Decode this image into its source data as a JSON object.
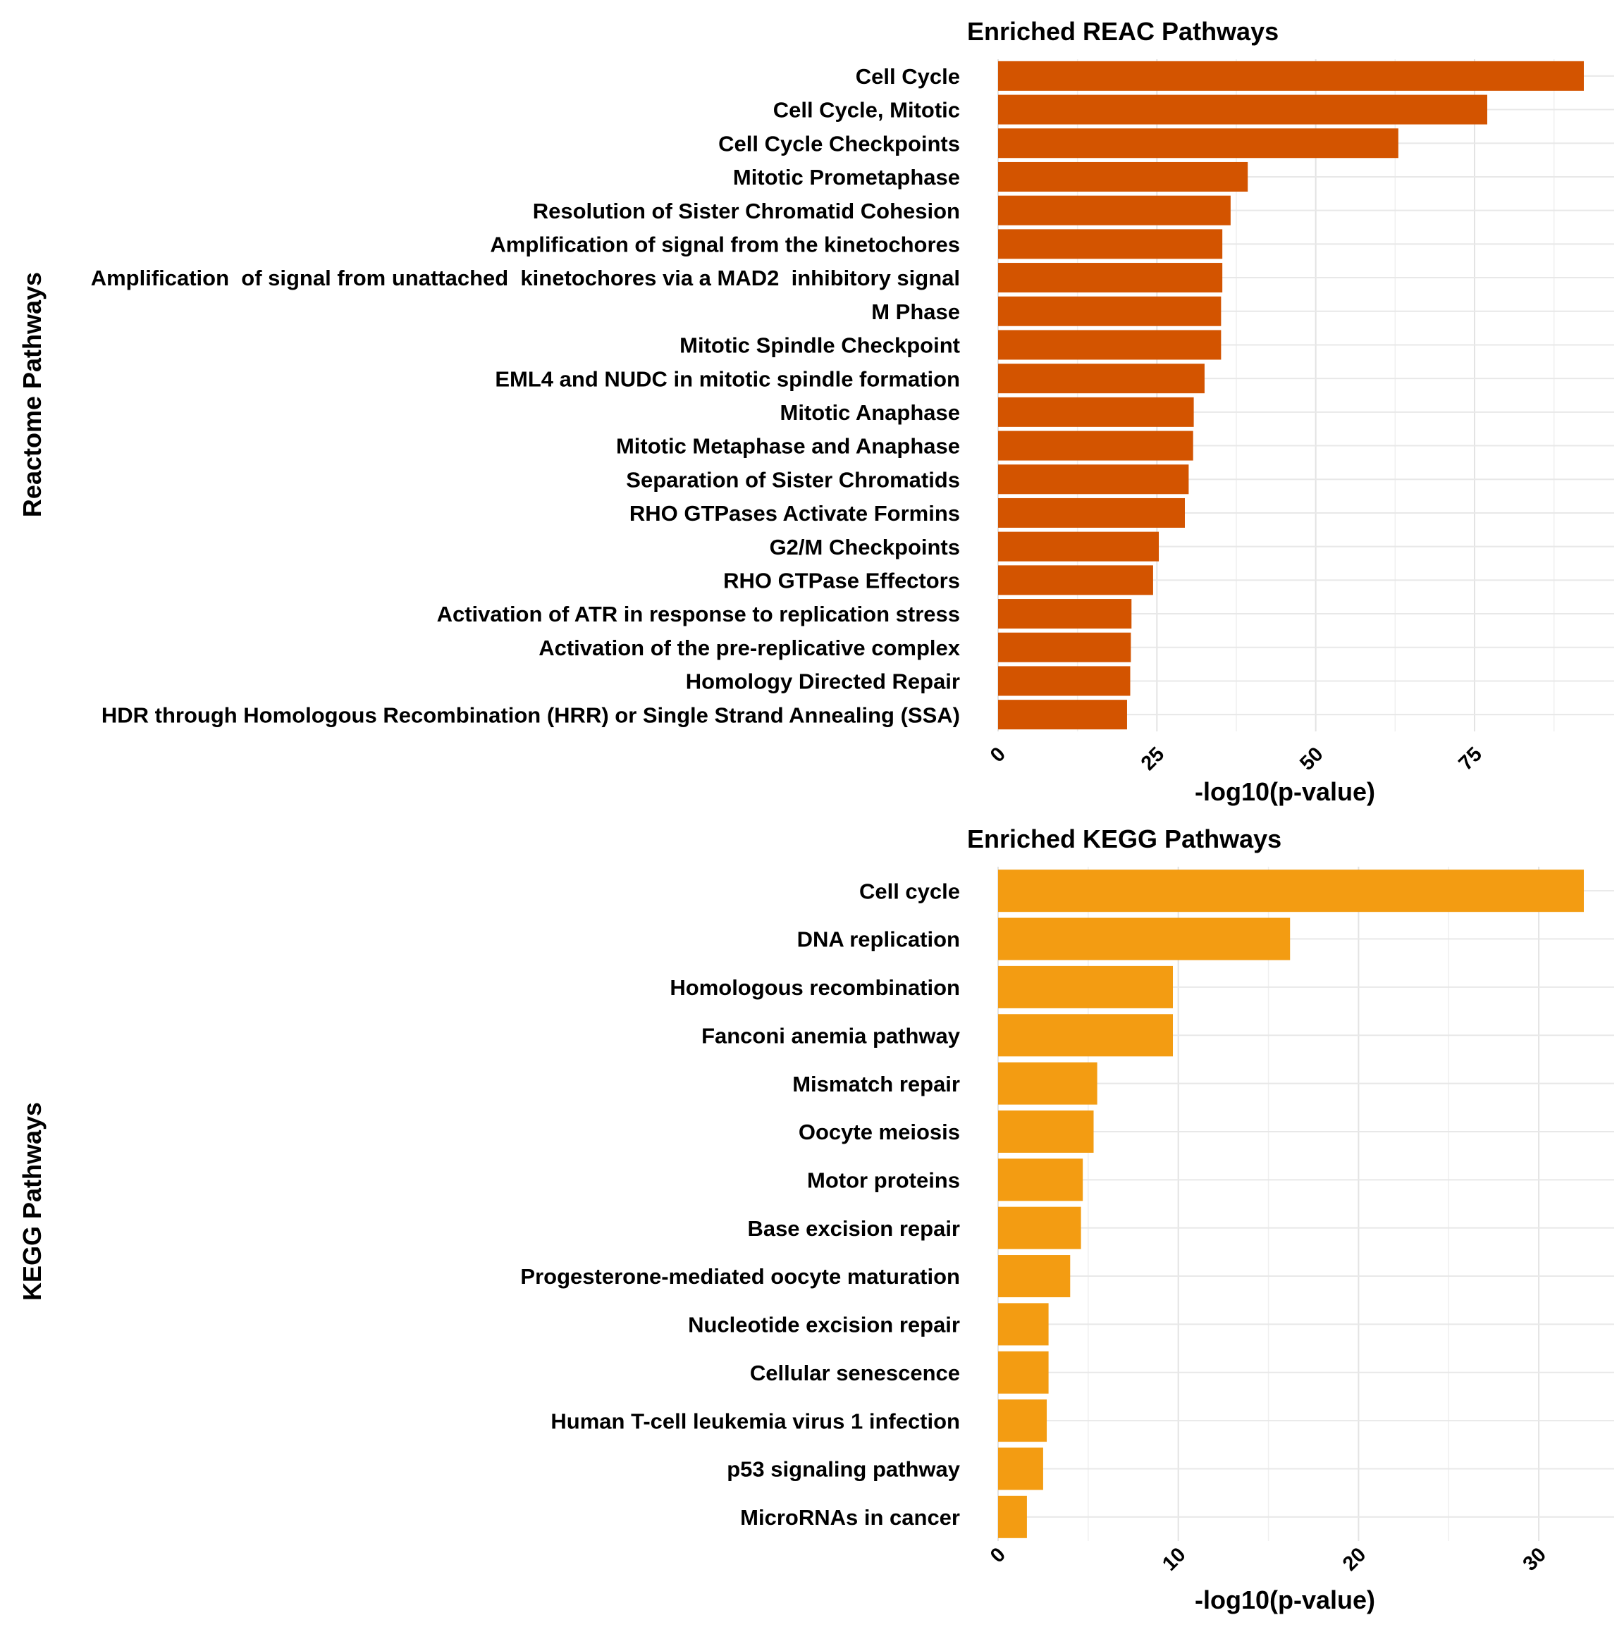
{
  "chart_data": [
    {
      "type": "bar",
      "orientation": "horizontal",
      "title": "Enriched REAC Pathways",
      "xlabel": "-log10(p-value)",
      "ylabel": "Reactome Pathways",
      "xlim": [
        0,
        97
      ],
      "xticks": [
        0,
        25,
        50,
        75
      ],
      "grid": true,
      "color": "#D35400",
      "categories": [
        "Cell Cycle",
        "Cell Cycle, Mitotic",
        "Cell Cycle Checkpoints",
        "Mitotic Prometaphase",
        "Resolution of Sister Chromatid Cohesion",
        "Amplification of signal from the kinetochores",
        "Amplification  of signal from unattached  kinetochores via a MAD2  inhibitory signal",
        "M Phase",
        "Mitotic Spindle Checkpoint",
        "EML4 and NUDC in mitotic spindle formation",
        "Mitotic Anaphase",
        "Mitotic Metaphase and Anaphase",
        "Separation of Sister Chromatids",
        "RHO GTPases Activate Formins",
        "G2/M Checkpoints",
        "RHO GTPase Effectors",
        "Activation of ATR in response to replication stress",
        "Activation of the pre-replicative complex",
        "Homology Directed Repair",
        "HDR through Homologous Recombination (HRR) or Single Strand Annealing (SSA)"
      ],
      "values": [
        92.2,
        77.0,
        63.0,
        39.3,
        36.6,
        35.3,
        35.3,
        35.1,
        35.1,
        32.5,
        30.8,
        30.7,
        30.0,
        29.4,
        25.3,
        24.4,
        21.0,
        20.9,
        20.8,
        20.3
      ]
    },
    {
      "type": "bar",
      "orientation": "horizontal",
      "title": "Enriched KEGG Pathways",
      "xlabel": "-log10(p-value)",
      "ylabel": "KEGG Pathways",
      "xlim": [
        0,
        34
      ],
      "xticks": [
        0,
        10,
        20,
        30
      ],
      "grid": true,
      "color": "#F39C12",
      "categories": [
        "Cell cycle",
        "DNA replication",
        "Homologous recombination",
        "Fanconi anemia pathway",
        "Mismatch repair",
        "Oocyte meiosis",
        "Motor proteins",
        "Base excision repair",
        "Progesterone-mediated oocyte maturation",
        "Nucleotide excision repair",
        "Cellular senescence",
        "Human T-cell leukemia virus 1 infection",
        "p53 signaling pathway",
        "MicroRNAs in cancer"
      ],
      "values": [
        32.5,
        16.2,
        9.7,
        9.7,
        5.5,
        5.3,
        4.7,
        4.6,
        4.0,
        2.8,
        2.8,
        2.7,
        2.5,
        1.6
      ]
    }
  ]
}
